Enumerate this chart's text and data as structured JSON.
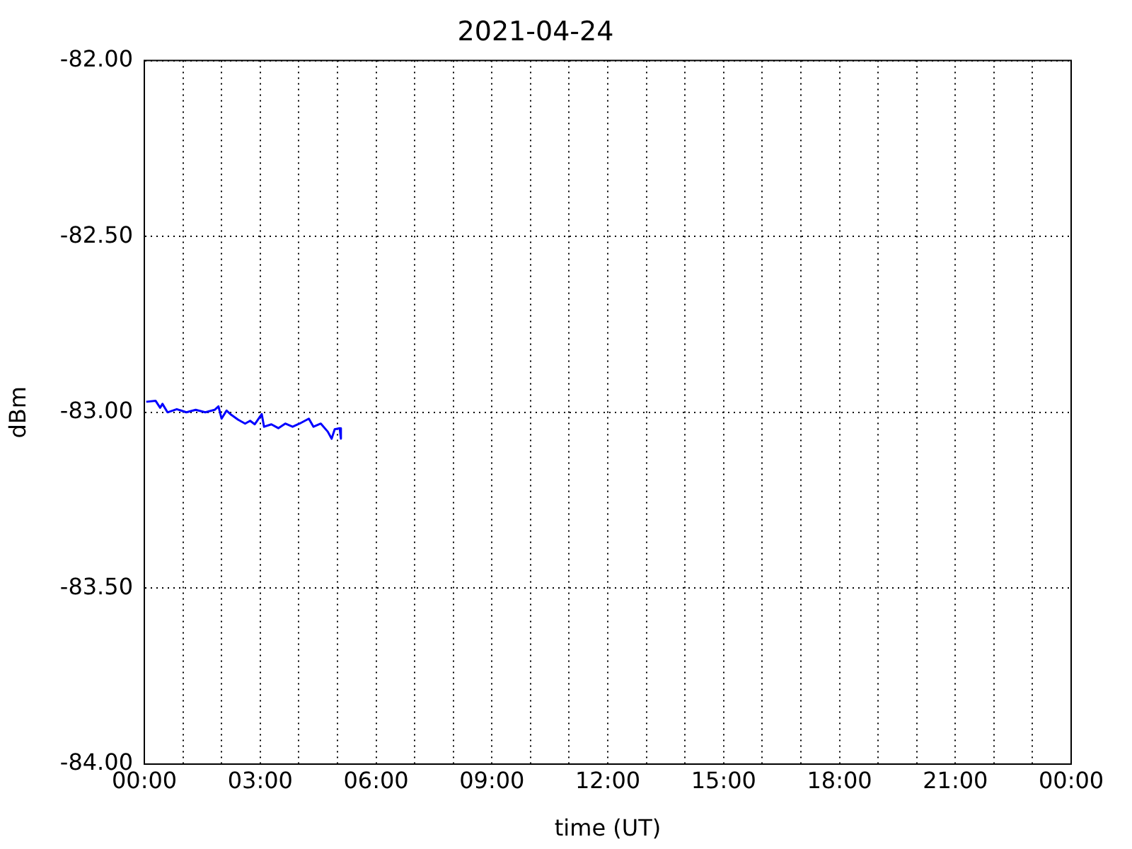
{
  "chart_data": {
    "type": "line",
    "title": "2021-04-24",
    "xlabel": "time (UT)",
    "ylabel": "dBm",
    "x": [
      0.05,
      0.29,
      0.41,
      0.47,
      0.6,
      0.84,
      1.09,
      1.33,
      1.58,
      1.82,
      1.92,
      2.0,
      2.13,
      2.25,
      2.43,
      2.61,
      2.74,
      2.86,
      3.04,
      3.1,
      3.29,
      3.47,
      3.65,
      3.84,
      4.02,
      4.26,
      4.38,
      4.57,
      4.75,
      4.85,
      4.93,
      5.06,
      5.09
    ],
    "series": [
      {
        "color": "#0000ff",
        "values": [
          -82.97,
          -82.967,
          -82.987,
          -82.976,
          -83.0,
          -82.991,
          -83.0,
          -82.993,
          -83.0,
          -82.993,
          -82.983,
          -83.018,
          -82.995,
          -83.007,
          -83.021,
          -83.032,
          -83.024,
          -83.034,
          -83.005,
          -83.041,
          -83.034,
          -83.045,
          -83.032,
          -83.041,
          -83.032,
          -83.018,
          -83.041,
          -83.032,
          -83.055,
          -83.075,
          -83.048,
          -83.045,
          -83.075
        ]
      }
    ],
    "xlim": [
      0,
      24
    ],
    "xticks": [
      {
        "value": 0,
        "label": "00:00"
      },
      {
        "value": 1,
        "label": null
      },
      {
        "value": 2,
        "label": null
      },
      {
        "value": 3,
        "label": "03:00"
      },
      {
        "value": 4,
        "label": null
      },
      {
        "value": 5,
        "label": null
      },
      {
        "value": 6,
        "label": "06:00"
      },
      {
        "value": 7,
        "label": null
      },
      {
        "value": 8,
        "label": null
      },
      {
        "value": 9,
        "label": "09:00"
      },
      {
        "value": 10,
        "label": null
      },
      {
        "value": 11,
        "label": null
      },
      {
        "value": 12,
        "label": "12:00"
      },
      {
        "value": 13,
        "label": null
      },
      {
        "value": 14,
        "label": null
      },
      {
        "value": 15,
        "label": "15:00"
      },
      {
        "value": 16,
        "label": null
      },
      {
        "value": 17,
        "label": null
      },
      {
        "value": 18,
        "label": "18:00"
      },
      {
        "value": 19,
        "label": null
      },
      {
        "value": 20,
        "label": null
      },
      {
        "value": 21,
        "label": "21:00"
      },
      {
        "value": 22,
        "label": null
      },
      {
        "value": 23,
        "label": null
      },
      {
        "value": 24,
        "label": "00:00"
      }
    ],
    "ylim": [
      -84,
      -82
    ],
    "yticks": [
      {
        "value": -84,
        "label": "-84.00"
      },
      {
        "value": -83.5,
        "label": "-83.50"
      },
      {
        "value": -83,
        "label": "-83.00"
      },
      {
        "value": -82.5,
        "label": "-82.50"
      },
      {
        "value": -82,
        "label": "-82.00"
      }
    ],
    "grid": true,
    "legend": false,
    "marker": "none",
    "line_style": "solid"
  }
}
